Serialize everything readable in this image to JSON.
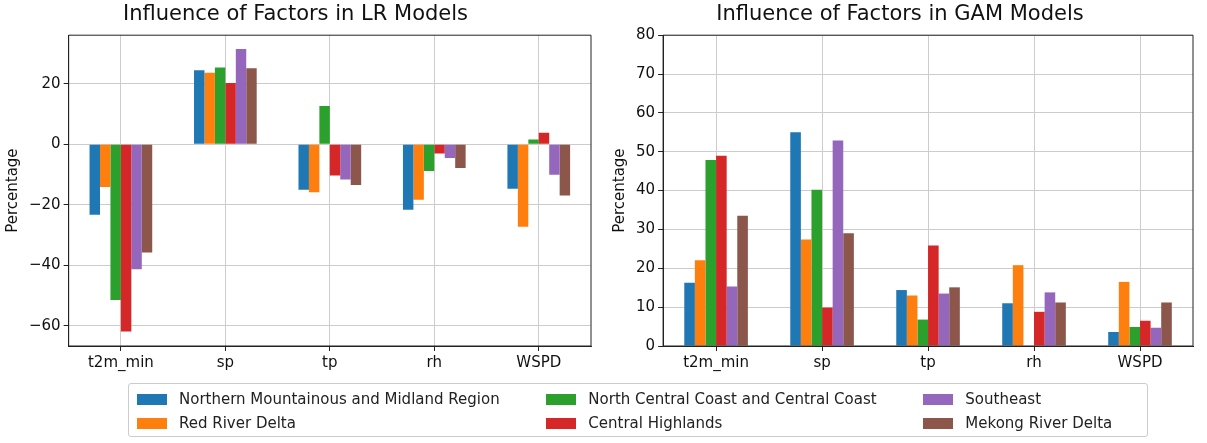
{
  "chart_data": [
    {
      "type": "bar",
      "title": "Influence of Factors in LR Models",
      "ylabel": "Percentage",
      "categories": [
        "t2m_min",
        "sp",
        "tp",
        "rh",
        "WSPD"
      ],
      "ylim": [
        -66.7,
        36
      ],
      "yticks": [
        -60,
        -40,
        -20,
        0,
        20
      ],
      "grid": true,
      "legend": "bottom",
      "series": [
        {
          "name": "Northern Mountainous and Midland Region",
          "color": "#1f77b4",
          "values": [
            -23.3,
            24.4,
            -15.1,
            -21.7,
            -14.7
          ]
        },
        {
          "name": "Red River Delta",
          "color": "#ff7f0e",
          "values": [
            -14.2,
            23.6,
            -15.9,
            -18.4,
            -27.3
          ]
        },
        {
          "name": "North Central Coast and Central Coast",
          "color": "#2ca02c",
          "values": [
            -51.5,
            25.3,
            12.6,
            -8.9,
            1.5
          ]
        },
        {
          "name": "Central Highlands",
          "color": "#d62728",
          "values": [
            -61.9,
            20.2,
            -10.4,
            -3.1,
            3.8
          ]
        },
        {
          "name": "Southeast",
          "color": "#9467bd",
          "values": [
            -41.3,
            31.4,
            -11.7,
            -4.6,
            -10.1
          ]
        },
        {
          "name": "Mekong River Delta",
          "color": "#8c564b",
          "values": [
            -35.8,
            25.1,
            -13.5,
            -7.9,
            -17
          ]
        }
      ]
    },
    {
      "type": "bar",
      "title": "Influence of Factors in GAM Models",
      "ylabel": "Percentage",
      "categories": [
        "t2m_min",
        "sp",
        "tp",
        "rh",
        "WSPD"
      ],
      "ylim": [
        0,
        80
      ],
      "yticks": [
        0,
        10,
        20,
        30,
        40,
        50,
        60,
        70,
        80
      ],
      "grid": true,
      "legend": "bottom",
      "series": [
        {
          "name": "Northern Mountainous and Midland Region",
          "color": "#1f77b4",
          "values": [
            16.3,
            55,
            14.4,
            11,
            3.6
          ]
        },
        {
          "name": "Red River Delta",
          "color": "#ff7f0e",
          "values": [
            22.1,
            27.4,
            13,
            20.8,
            16.5
          ]
        },
        {
          "name": "North Central Coast and Central Coast",
          "color": "#2ca02c",
          "values": [
            47.9,
            40.2,
            6.8,
            null,
            4.9
          ]
        },
        {
          "name": "Central Highlands",
          "color": "#d62728",
          "values": [
            49,
            9.9,
            25.9,
            8.8,
            6.5
          ]
        },
        {
          "name": "Southeast",
          "color": "#9467bd",
          "values": [
            15.3,
            52.9,
            13.5,
            13.8,
            4.7
          ]
        },
        {
          "name": "Mekong River Delta",
          "color": "#8c564b",
          "values": [
            33.5,
            29,
            15.1,
            11.2,
            11.2
          ]
        }
      ]
    }
  ]
}
